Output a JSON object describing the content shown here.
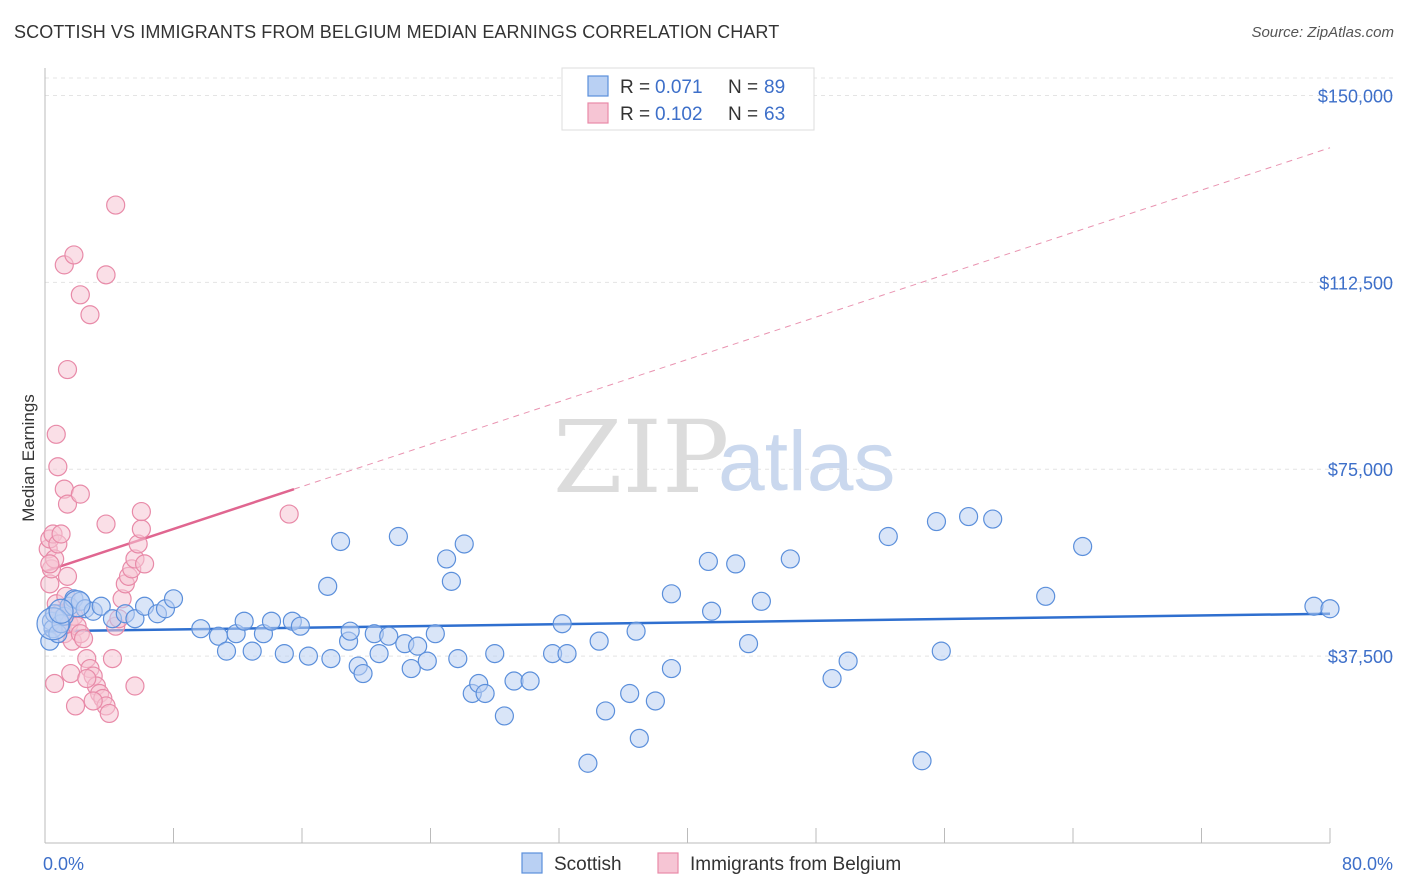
{
  "header": {
    "title": "SCOTTISH VS IMMIGRANTS FROM BELGIUM MEDIAN EARNINGS CORRELATION CHART",
    "source": "Source: ZipAtlas.com"
  },
  "legend_top": {
    "rows": [
      {
        "r_label": "R = ",
        "r_value": "0.071",
        "n_label": "N = ",
        "n_value": "89"
      },
      {
        "r_label": "R = ",
        "r_value": "0.102",
        "n_label": "N = ",
        "n_value": "63"
      }
    ]
  },
  "legend_bottom": [
    "Scottish",
    "Immigrants from Belgium"
  ],
  "watermark": {
    "zip": "ZIP",
    "atlas": "atlas"
  },
  "colors": {
    "blue": "#5b8fdb",
    "blue_fill": "#b9d0f3",
    "blue_line": "#2f6fcf",
    "pink": "#e88aa8",
    "pink_fill": "#f6c5d4",
    "pink_line": "#e06690",
    "grid": "#e4e4e4",
    "tick_text": "#3d6fc9"
  },
  "chart_data": {
    "type": "scatter",
    "title": "SCOTTISH VS IMMIGRANTS FROM BELGIUM MEDIAN EARNINGS CORRELATION CHART",
    "ylabel": "Median Earnings",
    "xlabel": "",
    "xlim": [
      0,
      80
    ],
    "ylim": [
      0,
      155000
    ],
    "x_tick_labels": [
      "0.0%",
      "80.0%"
    ],
    "y_ticks": [
      37500,
      75000,
      112500,
      150000
    ],
    "y_tick_labels": [
      "$37,500",
      "$75,000",
      "$112,500",
      "$150,000"
    ],
    "grid": true,
    "series": [
      {
        "name": "Scottish",
        "color": "blue",
        "r": 0.071,
        "n": 89,
        "trend": {
          "x": [
            0,
            80
          ],
          "y": [
            42500,
            46000
          ],
          "dashed_from": null
        },
        "points": [
          [
            0.3,
            40500
          ],
          [
            0.4,
            44500
          ],
          [
            0.5,
            43000
          ],
          [
            0.6,
            46000
          ],
          [
            0.8,
            42000
          ],
          [
            1.0,
            44000
          ],
          [
            1.2,
            45500
          ],
          [
            1.5,
            47500
          ],
          [
            1.8,
            49000
          ],
          [
            2.2,
            48500
          ],
          [
            2.5,
            47000
          ],
          [
            3.0,
            46500
          ],
          [
            3.5,
            47500
          ],
          [
            4.2,
            45000
          ],
          [
            5.0,
            46000
          ],
          [
            5.6,
            45000
          ],
          [
            6.2,
            47500
          ],
          [
            7.0,
            46000
          ],
          [
            7.5,
            47000
          ],
          [
            8.0,
            49000
          ],
          [
            9.7,
            43000
          ],
          [
            10.8,
            41500
          ],
          [
            11.3,
            38500
          ],
          [
            11.9,
            42000
          ],
          [
            12.4,
            44500
          ],
          [
            12.9,
            38500
          ],
          [
            13.6,
            42000
          ],
          [
            14.1,
            44500
          ],
          [
            14.9,
            38000
          ],
          [
            15.4,
            44500
          ],
          [
            15.9,
            43500
          ],
          [
            16.4,
            37500
          ],
          [
            17.6,
            51500
          ],
          [
            17.8,
            37000
          ],
          [
            18.4,
            60500
          ],
          [
            18.9,
            40500
          ],
          [
            19.0,
            42500
          ],
          [
            19.5,
            35500
          ],
          [
            19.8,
            34000
          ],
          [
            20.5,
            42000
          ],
          [
            20.8,
            38000
          ],
          [
            21.4,
            41500
          ],
          [
            22.0,
            61500
          ],
          [
            22.4,
            40000
          ],
          [
            22.8,
            35000
          ],
          [
            23.2,
            39500
          ],
          [
            23.8,
            36500
          ],
          [
            24.3,
            42000
          ],
          [
            25.0,
            57000
          ],
          [
            25.3,
            52500
          ],
          [
            25.7,
            37000
          ],
          [
            26.1,
            60000
          ],
          [
            26.6,
            30000
          ],
          [
            27.0,
            32000
          ],
          [
            27.4,
            30000
          ],
          [
            28.0,
            38000
          ],
          [
            28.6,
            25500
          ],
          [
            29.2,
            32500
          ],
          [
            30.2,
            32500
          ],
          [
            31.6,
            38000
          ],
          [
            32.2,
            44000
          ],
          [
            32.5,
            38000
          ],
          [
            33.8,
            16000
          ],
          [
            34.5,
            40500
          ],
          [
            34.9,
            26500
          ],
          [
            36.4,
            30000
          ],
          [
            36.8,
            42500
          ],
          [
            37.0,
            21000
          ],
          [
            38.0,
            28500
          ],
          [
            39.0,
            35000
          ],
          [
            39.0,
            50000
          ],
          [
            41.3,
            56500
          ],
          [
            41.5,
            46500
          ],
          [
            43.0,
            56000
          ],
          [
            43.8,
            40000
          ],
          [
            44.6,
            48500
          ],
          [
            46.4,
            57000
          ],
          [
            49.0,
            33000
          ],
          [
            50.0,
            36500
          ],
          [
            52.5,
            61500
          ],
          [
            54.6,
            16500
          ],
          [
            55.5,
            64500
          ],
          [
            55.8,
            38500
          ],
          [
            57.5,
            65500
          ],
          [
            59.0,
            65000
          ],
          [
            62.3,
            49500
          ],
          [
            64.6,
            59500
          ],
          [
            79.0,
            47500
          ],
          [
            80.0,
            47000
          ]
        ]
      },
      {
        "name": "Immigrants from Belgium",
        "color": "pink",
        "r": 0.102,
        "n": 63,
        "trend": {
          "x": [
            0,
            15.5,
            80
          ],
          "y": [
            54500,
            71000,
            139500
          ],
          "dashed_from": 15.5
        },
        "points": [
          [
            0.2,
            59000
          ],
          [
            0.3,
            61000
          ],
          [
            0.3,
            52000
          ],
          [
            0.4,
            55000
          ],
          [
            0.5,
            62000
          ],
          [
            0.6,
            57000
          ],
          [
            0.7,
            48000
          ],
          [
            0.8,
            60000
          ],
          [
            0.9,
            46000
          ],
          [
            1.0,
            45000
          ],
          [
            1.1,
            44000
          ],
          [
            1.2,
            42000
          ],
          [
            1.3,
            49500
          ],
          [
            1.4,
            53500
          ],
          [
            1.5,
            44000
          ],
          [
            1.6,
            47000
          ],
          [
            1.7,
            40500
          ],
          [
            1.8,
            45500
          ],
          [
            2.0,
            43500
          ],
          [
            2.2,
            42000
          ],
          [
            2.4,
            41000
          ],
          [
            2.6,
            37000
          ],
          [
            2.8,
            35000
          ],
          [
            3.0,
            33500
          ],
          [
            3.2,
            31500
          ],
          [
            3.4,
            30000
          ],
          [
            3.6,
            29000
          ],
          [
            3.8,
            27500
          ],
          [
            4.0,
            26000
          ],
          [
            4.2,
            37000
          ],
          [
            4.4,
            43500
          ],
          [
            4.6,
            45000
          ],
          [
            4.8,
            49000
          ],
          [
            5.0,
            52000
          ],
          [
            5.2,
            53500
          ],
          [
            5.4,
            55000
          ],
          [
            5.6,
            57000
          ],
          [
            5.8,
            60000
          ],
          [
            6.0,
            63000
          ],
          [
            6.2,
            56000
          ],
          [
            0.8,
            75500
          ],
          [
            0.7,
            82000
          ],
          [
            1.2,
            71000
          ],
          [
            1.4,
            68000
          ],
          [
            2.2,
            70000
          ],
          [
            3.8,
            64000
          ],
          [
            6.0,
            66500
          ],
          [
            1.4,
            95000
          ],
          [
            2.2,
            110000
          ],
          [
            2.8,
            106000
          ],
          [
            3.8,
            114000
          ],
          [
            1.2,
            116000
          ],
          [
            1.8,
            118000
          ],
          [
            4.4,
            128000
          ],
          [
            3.0,
            28500
          ],
          [
            5.6,
            31500
          ],
          [
            0.6,
            32000
          ],
          [
            1.6,
            34000
          ],
          [
            15.2,
            66000
          ],
          [
            1.0,
            62000
          ],
          [
            0.3,
            56000
          ],
          [
            2.6,
            33000
          ],
          [
            1.9,
            27500
          ]
        ]
      }
    ]
  }
}
